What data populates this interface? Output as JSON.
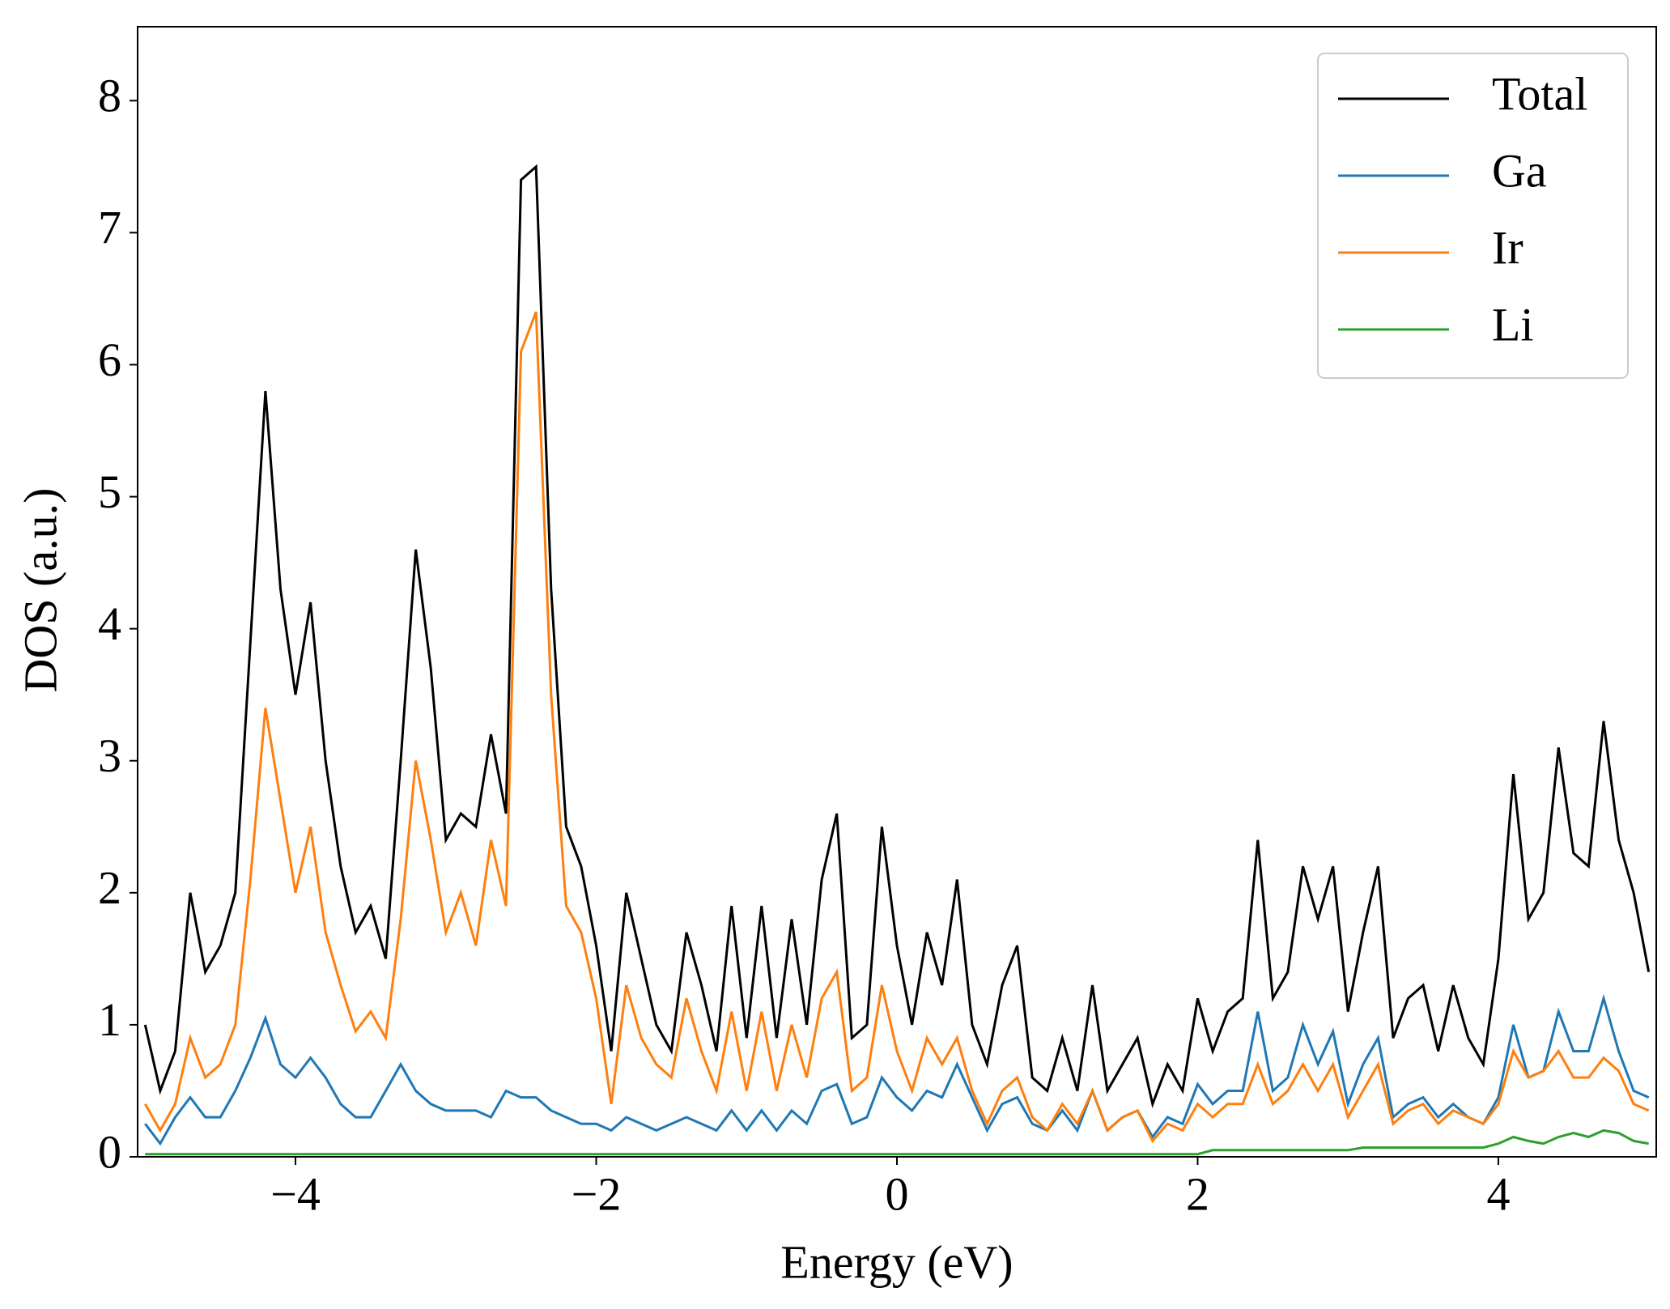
{
  "chart_data": {
    "type": "line",
    "xlabel": "Energy (eV)",
    "ylabel": "DOS (a.u.)",
    "x": [
      -5.0,
      -4.9,
      -4.8,
      -4.7,
      -4.6,
      -4.5,
      -4.4,
      -4.3,
      -4.2,
      -4.1,
      -4.0,
      -3.9,
      -3.8,
      -3.7,
      -3.6,
      -3.5,
      -3.4,
      -3.3,
      -3.2,
      -3.1,
      -3.0,
      -2.9,
      -2.8,
      -2.7,
      -2.6,
      -2.5,
      -2.4,
      -2.3,
      -2.2,
      -2.1,
      -2.0,
      -1.9,
      -1.8,
      -1.7,
      -1.6,
      -1.5,
      -1.4,
      -1.3,
      -1.2,
      -1.1,
      -1.0,
      -0.9,
      -0.8,
      -0.7,
      -0.6,
      -0.5,
      -0.4,
      -0.3,
      -0.2,
      -0.1,
      0.0,
      0.1,
      0.2,
      0.3,
      0.4,
      0.5,
      0.6,
      0.7,
      0.8,
      0.9,
      1.0,
      1.1,
      1.2,
      1.3,
      1.4,
      1.5,
      1.6,
      1.7,
      1.8,
      1.9,
      2.0,
      2.1,
      2.2,
      2.3,
      2.4,
      2.5,
      2.6,
      2.7,
      2.8,
      2.9,
      3.0,
      3.1,
      3.2,
      3.3,
      3.4,
      3.5,
      3.6,
      3.7,
      3.8,
      3.9,
      4.0,
      4.1,
      4.2,
      4.3,
      4.4,
      4.5,
      4.6,
      4.7,
      4.8,
      4.9,
      5.0
    ],
    "series": [
      {
        "name": "Total",
        "color": "#000000",
        "values": [
          1.0,
          0.5,
          0.8,
          2.0,
          1.4,
          1.6,
          2.0,
          3.9,
          5.8,
          4.3,
          3.5,
          4.2,
          3.0,
          2.2,
          1.7,
          1.9,
          1.5,
          3.0,
          4.6,
          3.7,
          2.4,
          2.6,
          2.5,
          3.2,
          2.6,
          7.4,
          7.5,
          4.3,
          2.5,
          2.2,
          1.6,
          0.8,
          2.0,
          1.5,
          1.0,
          0.8,
          1.7,
          1.3,
          0.8,
          1.9,
          0.9,
          1.9,
          0.9,
          1.8,
          1.0,
          2.1,
          2.6,
          0.9,
          1.0,
          2.5,
          1.6,
          1.0,
          1.7,
          1.3,
          2.1,
          1.0,
          0.7,
          1.3,
          1.6,
          0.6,
          0.5,
          0.9,
          0.5,
          1.3,
          0.5,
          0.7,
          0.9,
          0.4,
          0.7,
          0.5,
          1.2,
          0.8,
          1.1,
          1.2,
          2.4,
          1.2,
          1.4,
          2.2,
          1.8,
          2.2,
          1.1,
          1.7,
          2.2,
          0.9,
          1.2,
          1.3,
          0.8,
          1.3,
          0.9,
          0.7,
          1.5,
          2.9,
          1.8,
          2.0,
          3.1,
          2.3,
          2.2,
          3.3,
          2.4,
          2.0,
          1.4
        ]
      },
      {
        "name": "Ga",
        "color": "#1f77b4",
        "values": [
          0.25,
          0.1,
          0.3,
          0.45,
          0.3,
          0.3,
          0.5,
          0.75,
          1.05,
          0.7,
          0.6,
          0.75,
          0.6,
          0.4,
          0.3,
          0.3,
          0.5,
          0.7,
          0.5,
          0.4,
          0.35,
          0.35,
          0.35,
          0.3,
          0.5,
          0.45,
          0.45,
          0.35,
          0.3,
          0.25,
          0.25,
          0.2,
          0.3,
          0.25,
          0.2,
          0.25,
          0.3,
          0.25,
          0.2,
          0.35,
          0.2,
          0.35,
          0.2,
          0.35,
          0.25,
          0.5,
          0.55,
          0.25,
          0.3,
          0.6,
          0.45,
          0.35,
          0.5,
          0.45,
          0.7,
          0.45,
          0.2,
          0.4,
          0.45,
          0.25,
          0.2,
          0.35,
          0.2,
          0.5,
          0.2,
          0.3,
          0.35,
          0.15,
          0.3,
          0.25,
          0.55,
          0.4,
          0.5,
          0.5,
          1.1,
          0.5,
          0.6,
          1.0,
          0.7,
          0.95,
          0.4,
          0.7,
          0.9,
          0.3,
          0.4,
          0.45,
          0.3,
          0.4,
          0.3,
          0.25,
          0.45,
          1.0,
          0.6,
          0.65,
          1.1,
          0.8,
          0.8,
          1.2,
          0.8,
          0.5,
          0.45
        ]
      },
      {
        "name": "Ir",
        "color": "#ff7f0e",
        "values": [
          0.4,
          0.2,
          0.4,
          0.9,
          0.6,
          0.7,
          1.0,
          2.1,
          3.4,
          2.7,
          2.0,
          2.5,
          1.7,
          1.3,
          0.95,
          1.1,
          0.9,
          1.8,
          3.0,
          2.4,
          1.7,
          2.0,
          1.6,
          2.4,
          1.9,
          6.1,
          6.4,
          3.5,
          1.9,
          1.7,
          1.2,
          0.4,
          1.3,
          0.9,
          0.7,
          0.6,
          1.2,
          0.8,
          0.5,
          1.1,
          0.5,
          1.1,
          0.5,
          1.0,
          0.6,
          1.2,
          1.4,
          0.5,
          0.6,
          1.3,
          0.8,
          0.5,
          0.9,
          0.7,
          0.9,
          0.5,
          0.25,
          0.5,
          0.6,
          0.3,
          0.2,
          0.4,
          0.25,
          0.5,
          0.2,
          0.3,
          0.35,
          0.12,
          0.25,
          0.2,
          0.4,
          0.3,
          0.4,
          0.4,
          0.7,
          0.4,
          0.5,
          0.7,
          0.5,
          0.7,
          0.3,
          0.5,
          0.7,
          0.25,
          0.35,
          0.4,
          0.25,
          0.35,
          0.3,
          0.25,
          0.4,
          0.8,
          0.6,
          0.65,
          0.8,
          0.6,
          0.6,
          0.75,
          0.65,
          0.4,
          0.35
        ]
      },
      {
        "name": "Li",
        "color": "#2ca02c",
        "values": [
          0.02,
          0.02,
          0.02,
          0.02,
          0.02,
          0.02,
          0.02,
          0.02,
          0.02,
          0.02,
          0.02,
          0.02,
          0.02,
          0.02,
          0.02,
          0.02,
          0.02,
          0.02,
          0.02,
          0.02,
          0.02,
          0.02,
          0.02,
          0.02,
          0.02,
          0.02,
          0.02,
          0.02,
          0.02,
          0.02,
          0.02,
          0.02,
          0.02,
          0.02,
          0.02,
          0.02,
          0.02,
          0.02,
          0.02,
          0.02,
          0.02,
          0.02,
          0.02,
          0.02,
          0.02,
          0.02,
          0.02,
          0.02,
          0.02,
          0.02,
          0.02,
          0.02,
          0.02,
          0.02,
          0.02,
          0.02,
          0.02,
          0.02,
          0.02,
          0.02,
          0.02,
          0.02,
          0.02,
          0.02,
          0.02,
          0.02,
          0.02,
          0.02,
          0.02,
          0.02,
          0.02,
          0.05,
          0.05,
          0.05,
          0.05,
          0.05,
          0.05,
          0.05,
          0.05,
          0.05,
          0.05,
          0.07,
          0.07,
          0.07,
          0.07,
          0.07,
          0.07,
          0.07,
          0.07,
          0.07,
          0.1,
          0.15,
          0.12,
          0.1,
          0.15,
          0.18,
          0.15,
          0.2,
          0.18,
          0.12,
          0.1
        ]
      }
    ],
    "xlim": [
      -5.05,
      5.05
    ],
    "ylim": [
      0,
      8.56
    ],
    "xticks": [
      {
        "value": -4,
        "label": "−4"
      },
      {
        "value": -2,
        "label": "−2"
      },
      0,
      2,
      4
    ],
    "yticks": [
      0,
      1,
      2,
      3,
      4,
      5,
      6,
      7,
      8
    ],
    "legend": "upper right",
    "grid": false
  }
}
